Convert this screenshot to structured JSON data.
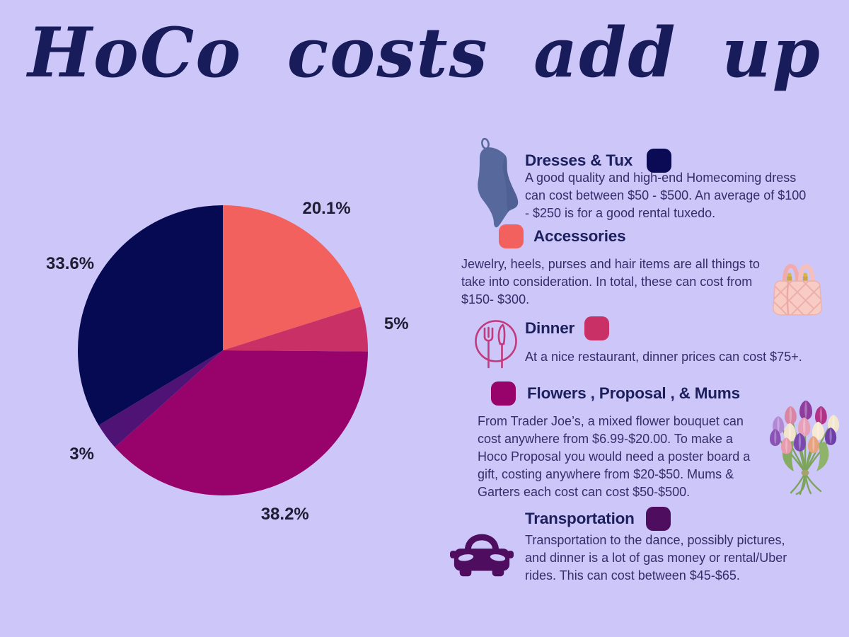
{
  "page": {
    "background": "#CDC6F8",
    "title": "HoCo costs add up",
    "title_color": "#191C5B",
    "heading_color": "#1B1F5E",
    "body_color": "#352D6B"
  },
  "chart_data": {
    "type": "pie",
    "title": "HoCo costs add up",
    "legend_position": "right",
    "start_angle_clockwise_from_top_deg": 0,
    "label_color": "#1E1C33",
    "slices": [
      {
        "category": "Accessories",
        "label": "20.1%",
        "value": 20.1,
        "color": "#F2615D"
      },
      {
        "category": "Dinner",
        "label": "5%",
        "value": 5,
        "color": "#C93166"
      },
      {
        "category": "Flowers, Proposal, & Mums",
        "label": "38.2%",
        "value": 38.2,
        "color": "#97036A"
      },
      {
        "category": "Transportation",
        "label": "3%",
        "value": 3,
        "color": "#4F1375"
      },
      {
        "category": "Dresses & Tux",
        "label": "33.6%",
        "value": 33.6,
        "color": "#060A52"
      }
    ]
  },
  "sections": [
    {
      "title": "Dresses & Tux",
      "swatch_color": "#0B0B55",
      "icon": "dress-icon",
      "body": "A  good quality and high-end Homecoming dress can cost between $50  -  $500. An average of $100 - $250 is for a good rental tuxedo."
    },
    {
      "title": "Accessories",
      "swatch_color": "#F2615D",
      "icon": "handbag-icon",
      "body": "Jewelry, heels, purses  and hair items  are all things to take into consideration. In total, these can cost from $150- $300."
    },
    {
      "title": "Dinner",
      "swatch_color": "#C93166",
      "icon": "plate-fork-knife-icon",
      "body": "At a nice restaurant, dinner prices can cost $75+."
    },
    {
      "title": "Flowers , Proposal , & Mums",
      "swatch_color": "#97036A",
      "icon": "tulip-bouquet-icon",
      "body": "From Trader Joe’s, a mixed flower bouquet can cost anywhere from $6.99-$20.00. To make a Hoco Proposal you would need a poster board a gift, costing anywhere from $20-$50. Mums & Garters each cost can cost $50-$500."
    },
    {
      "title": "Transportation",
      "swatch_color": "#4E0D5F",
      "icon": "car-icon",
      "body": "Transportation to the dance, possibly pictures, and dinner is a lot of gas money or rental/Uber rides. This can cost between $45-$65."
    }
  ]
}
